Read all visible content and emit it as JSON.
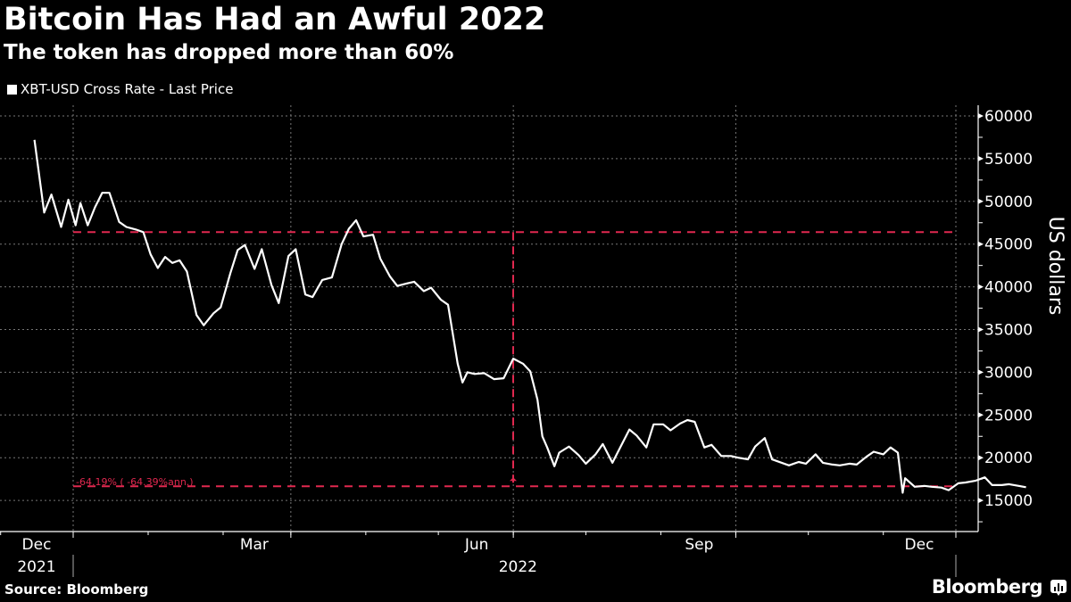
{
  "header": {
    "title": "Bitcoin Has Had an Awful 2022",
    "subtitle": "The token has dropped more than 60%"
  },
  "legend": {
    "items": [
      {
        "label": "XBT-USD Cross Rate - Last Price",
        "color": "#ffffff"
      }
    ]
  },
  "footer": {
    "source": "Source: Bloomberg",
    "brand": "Bloomberg",
    "brand_icon": "bloomberg-chart-icon"
  },
  "annotation": {
    "label": "-64.19% ( -64.39%ann.)",
    "color": "#e0284f",
    "high_level": 46400,
    "low_level": 16650
  },
  "chart_data": {
    "type": "line",
    "title": "Bitcoin Has Had an Awful 2022",
    "subtitle": "The token has dropped more than 60%",
    "xlabel": "",
    "ylabel": "US dollars",
    "ylim": [
      12500,
      61500
    ],
    "yticks": [
      15000,
      20000,
      25000,
      30000,
      35000,
      40000,
      45000,
      50000,
      55000,
      60000
    ],
    "xticks": [
      {
        "label": "Dec",
        "sub": "2021"
      },
      {
        "label": "Mar",
        "sub": ""
      },
      {
        "label": "Jun",
        "sub": "2022"
      },
      {
        "label": "Sep",
        "sub": ""
      },
      {
        "label": "Dec",
        "sub": ""
      }
    ],
    "grid": true,
    "legend_position": "top-left",
    "series": [
      {
        "name": "XBT-USD Cross Rate - Last Price",
        "color": "#ffffff",
        "x": [
          "2021-11-15",
          "2021-11-19",
          "2021-11-22",
          "2021-11-26",
          "2021-11-29",
          "2021-12-02",
          "2021-12-04",
          "2021-12-07",
          "2021-12-10",
          "2021-12-13",
          "2021-12-16",
          "2021-12-20",
          "2021-12-23",
          "2021-12-27",
          "2021-12-30",
          "2022-01-02",
          "2022-01-05",
          "2022-01-08",
          "2022-01-11",
          "2022-01-14",
          "2022-01-17",
          "2022-01-21",
          "2022-01-24",
          "2022-01-28",
          "2022-01-31",
          "2022-02-04",
          "2022-02-07",
          "2022-02-10",
          "2022-02-14",
          "2022-02-17",
          "2022-02-21",
          "2022-02-24",
          "2022-02-28",
          "2022-03-03",
          "2022-03-07",
          "2022-03-10",
          "2022-03-14",
          "2022-03-18",
          "2022-03-22",
          "2022-03-25",
          "2022-03-28",
          "2022-03-31",
          "2022-04-04",
          "2022-04-07",
          "2022-04-11",
          "2022-04-14",
          "2022-04-18",
          "2022-04-21",
          "2022-04-25",
          "2022-04-28",
          "2022-05-02",
          "2022-05-05",
          "2022-05-09",
          "2022-05-11",
          "2022-05-13",
          "2022-05-16",
          "2022-05-20",
          "2022-05-24",
          "2022-05-28",
          "2022-06-01",
          "2022-06-05",
          "2022-06-08",
          "2022-06-11",
          "2022-06-13",
          "2022-06-15",
          "2022-06-18",
          "2022-06-20",
          "2022-06-24",
          "2022-06-28",
          "2022-07-01",
          "2022-07-05",
          "2022-07-08",
          "2022-07-12",
          "2022-07-15",
          "2022-07-19",
          "2022-07-22",
          "2022-07-26",
          "2022-07-29",
          "2022-08-02",
          "2022-08-05",
          "2022-08-09",
          "2022-08-12",
          "2022-08-15",
          "2022-08-19",
          "2022-08-22",
          "2022-08-26",
          "2022-08-30",
          "2022-09-02",
          "2022-09-06",
          "2022-09-09",
          "2022-09-13",
          "2022-09-16",
          "2022-09-20",
          "2022-09-23",
          "2022-09-27",
          "2022-09-30",
          "2022-10-04",
          "2022-10-07",
          "2022-10-11",
          "2022-10-14",
          "2022-10-18",
          "2022-10-21",
          "2022-10-25",
          "2022-10-28",
          "2022-11-01",
          "2022-11-04",
          "2022-11-07",
          "2022-11-09",
          "2022-11-10",
          "2022-11-14",
          "2022-11-18",
          "2022-11-21",
          "2022-11-25",
          "2022-11-28",
          "2022-12-02",
          "2022-12-05",
          "2022-12-09",
          "2022-12-13",
          "2022-12-16",
          "2022-12-20",
          "2022-12-23",
          "2022-12-27",
          "2022-12-30"
        ],
        "values": [
          57200,
          48700,
          50800,
          47000,
          50200,
          47200,
          49800,
          47200,
          49300,
          51000,
          51000,
          47600,
          47000,
          46700,
          46400,
          43800,
          42200,
          43500,
          42800,
          43100,
          41800,
          36700,
          35500,
          36900,
          37600,
          41600,
          44300,
          44900,
          42100,
          44400,
          40200,
          38100,
          43600,
          44400,
          39100,
          38800,
          40800,
          41100,
          45000,
          46800,
          47800,
          45900,
          46100,
          43300,
          41200,
          40100,
          40400,
          40600,
          39500,
          39900,
          38500,
          37900,
          31000,
          28800,
          30000,
          29800,
          29900,
          29200,
          29300,
          31600,
          31000,
          30100,
          26800,
          22500,
          21200,
          19000,
          20600,
          21300,
          20300,
          19300,
          20400,
          21600,
          19400,
          21100,
          23300,
          22600,
          21200,
          23900,
          23900,
          23200,
          24000,
          24400,
          24200,
          21200,
          21500,
          20200,
          20200,
          20000,
          19800,
          21300,
          22300,
          19800,
          19400,
          19100,
          19500,
          19300,
          20400,
          19400,
          19200,
          19100,
          19300,
          19200,
          20100,
          20700,
          20400,
          21200,
          20600,
          15900,
          17600,
          16600,
          16700,
          16600,
          16500,
          16200,
          17000,
          17100,
          17300,
          17700,
          16800,
          16800,
          16900,
          16700,
          16550
        ]
      }
    ],
    "annotations": [
      {
        "type": "hline",
        "value": 46400,
        "style": "dashed",
        "color": "#e0284f"
      },
      {
        "type": "hline",
        "value": 16650,
        "style": "dashed",
        "color": "#e0284f"
      },
      {
        "type": "vline",
        "x": "2022-06-15",
        "from": 46400,
        "to": 16650,
        "style": "dashed",
        "color": "#e0284f"
      },
      {
        "type": "text",
        "text": "-64.19% ( -64.39%ann.)",
        "color": "#e0284f"
      }
    ]
  }
}
